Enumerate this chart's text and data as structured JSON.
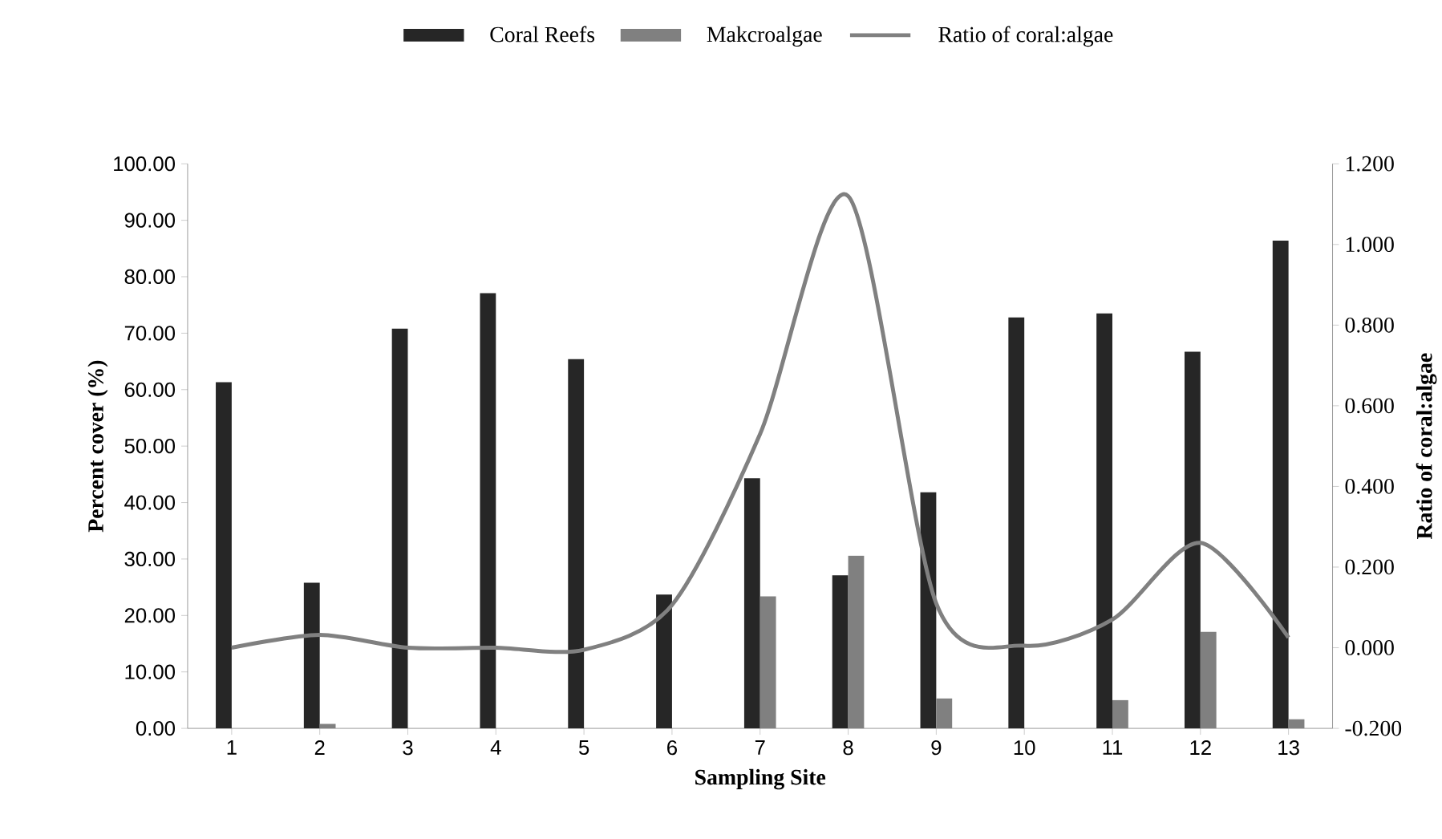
{
  "chart_data": {
    "type": "bar",
    "xlabel": "Sampling Site",
    "ylabel": "Percent cover (%)",
    "y2label": "Ratio of coral:algae",
    "categories": [
      "1",
      "2",
      "3",
      "4",
      "5",
      "6",
      "7",
      "8",
      "9",
      "10",
      "11",
      "12",
      "13"
    ],
    "series": [
      {
        "name": "Coral Reefs",
        "color": "#262626",
        "values": [
          61.3,
          25.8,
          70.8,
          77.1,
          65.4,
          23.7,
          44.3,
          27.1,
          41.8,
          72.8,
          73.5,
          66.7,
          86.4
        ]
      },
      {
        "name": "Makcroalgae",
        "color": "#808080",
        "values": [
          0,
          0.8,
          0,
          0,
          0,
          0,
          23.4,
          30.6,
          5.3,
          0,
          5.0,
          17.1,
          1.6
        ]
      },
      {
        "name": "Ratio of coral:algae",
        "type": "line",
        "axis": "y2",
        "color": "#808080",
        "line_style": "solid",
        "values": [
          0.0,
          0.032,
          0.0,
          0.0,
          -0.005,
          0.106,
          0.53,
          1.12,
          0.11,
          0.005,
          0.07,
          0.26,
          0.025
        ]
      }
    ],
    "ylim": [
      0,
      100
    ],
    "yticks": [
      {
        "value": 0,
        "label": "0.00"
      },
      {
        "value": 10,
        "label": "10.00"
      },
      {
        "value": 20,
        "label": "20.00"
      },
      {
        "value": 30,
        "label": "30.00"
      },
      {
        "value": 40,
        "label": "40.00"
      },
      {
        "value": 50,
        "label": "50.00"
      },
      {
        "value": 60,
        "label": "60.00"
      },
      {
        "value": 70,
        "label": "70.00"
      },
      {
        "value": 80,
        "label": "80.00"
      },
      {
        "value": 90,
        "label": "90.00"
      },
      {
        "value": 100,
        "label": "100.00"
      }
    ],
    "y2lim": [
      -0.2,
      1.2
    ],
    "y2ticks": [
      {
        "value": -0.2,
        "label": "-0.200"
      },
      {
        "value": 0,
        "label": "0.000"
      },
      {
        "value": 0.2,
        "label": "0.200"
      },
      {
        "value": 0.4,
        "label": "0.400"
      },
      {
        "value": 0.6,
        "label": "0.600"
      },
      {
        "value": 0.8,
        "label": "0.800"
      },
      {
        "value": 1,
        "label": "1.000"
      },
      {
        "value": 1.2,
        "label": "1.200"
      }
    ],
    "grid": false,
    "legend": "top",
    "marker": "none"
  }
}
